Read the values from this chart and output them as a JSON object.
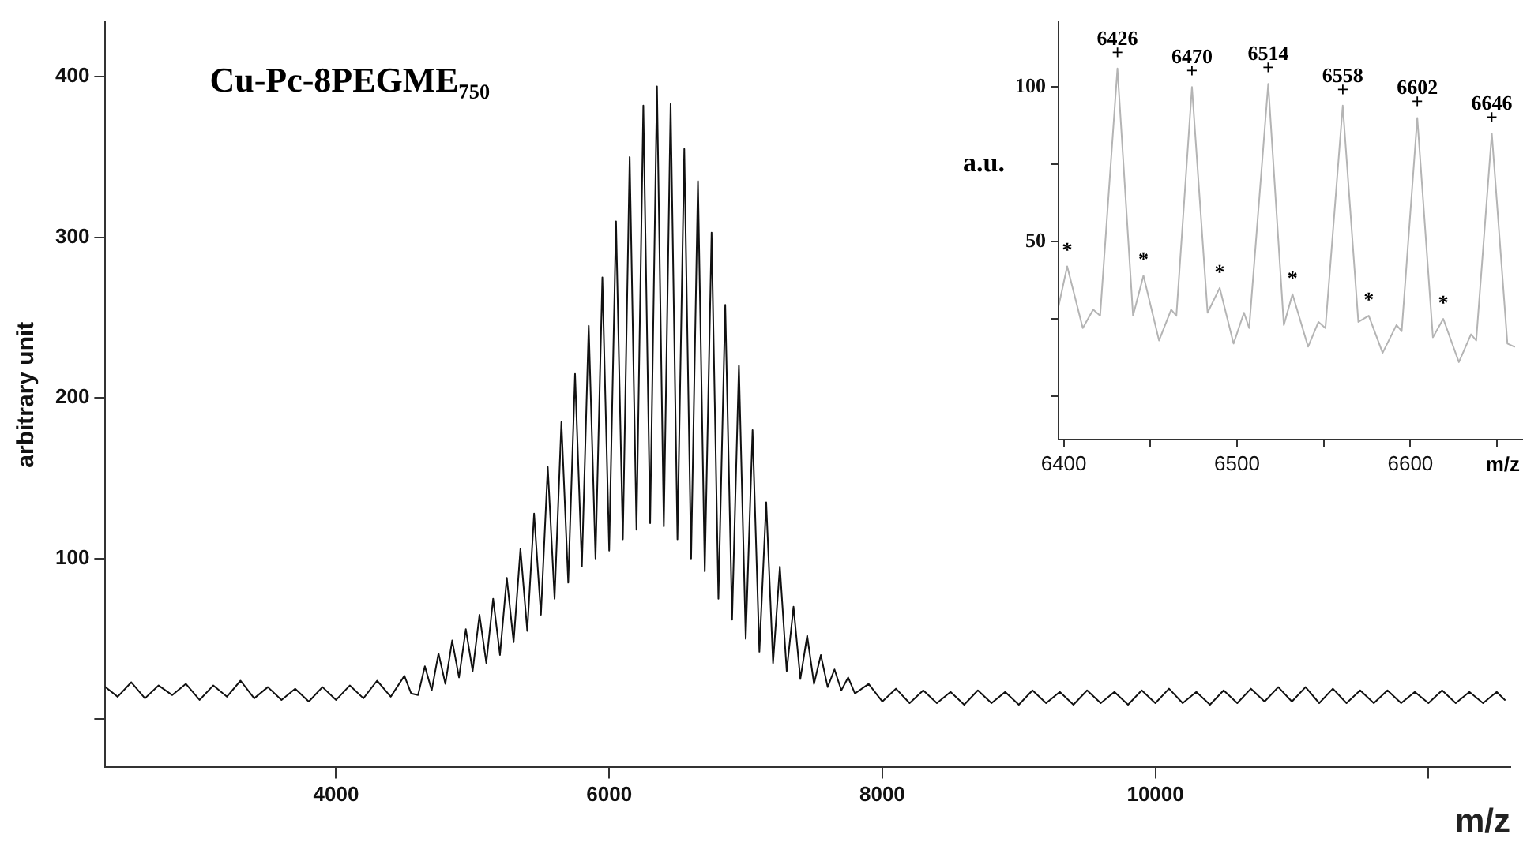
{
  "chart_data": [
    {
      "type": "line",
      "title": "Cu-Pc-8PEGME₇₅₀",
      "xlabel": "m/z",
      "ylabel": "arbitrary unit",
      "color": "#111111",
      "marker": "none",
      "x": [
        2310,
        2400,
        2500,
        2600,
        2700,
        2800,
        2900,
        3000,
        3100,
        3200,
        3300,
        3400,
        3500,
        3600,
        3700,
        3800,
        3900,
        4000,
        4100,
        4200,
        4300,
        4400,
        4500,
        4550,
        4600,
        4650,
        4700,
        4750,
        4800,
        4850,
        4900,
        4950,
        5000,
        5050,
        5100,
        5150,
        5200,
        5250,
        5300,
        5350,
        5400,
        5450,
        5500,
        5550,
        5600,
        5650,
        5700,
        5750,
        5800,
        5850,
        5900,
        5950,
        6000,
        6050,
        6100,
        6150,
        6200,
        6250,
        6300,
        6350,
        6400,
        6450,
        6500,
        6550,
        6600,
        6650,
        6700,
        6750,
        6800,
        6850,
        6900,
        6950,
        7000,
        7050,
        7100,
        7150,
        7200,
        7250,
        7300,
        7350,
        7400,
        7450,
        7500,
        7550,
        7600,
        7650,
        7700,
        7750,
        7800,
        7900,
        8000,
        8100,
        8200,
        8300,
        8400,
        8500,
        8600,
        8700,
        8800,
        8900,
        9000,
        9100,
        9200,
        9300,
        9400,
        9500,
        9600,
        9700,
        9800,
        9900,
        10000,
        10100,
        10200,
        10300,
        10400,
        10500,
        10600,
        10700,
        10800,
        10900,
        11000,
        11100,
        11200,
        11300,
        11400,
        11500,
        11600,
        11700,
        11800,
        11900,
        12000,
        12100,
        12200,
        12300,
        12400,
        12500,
        12560
      ],
      "values": [
        20,
        14,
        23,
        13,
        21,
        15,
        22,
        12,
        21,
        14,
        24,
        13,
        20,
        12,
        19,
        11,
        20,
        12,
        21,
        13,
        24,
        14,
        27,
        16,
        15,
        33,
        18,
        41,
        22,
        49,
        26,
        56,
        30,
        65,
        35,
        75,
        40,
        88,
        48,
        106,
        55,
        128,
        65,
        157,
        75,
        185,
        85,
        215,
        95,
        245,
        100,
        275,
        105,
        310,
        112,
        350,
        118,
        382,
        122,
        394,
        120,
        383,
        112,
        355,
        100,
        335,
        92,
        303,
        75,
        258,
        62,
        220,
        50,
        180,
        42,
        135,
        35,
        95,
        30,
        70,
        25,
        52,
        22,
        40,
        20,
        31,
        18,
        26,
        16,
        22,
        11,
        19,
        10,
        18,
        10,
        17,
        9,
        18,
        10,
        17,
        9,
        18,
        10,
        17,
        9,
        18,
        10,
        17,
        9,
        18,
        10,
        19,
        10,
        17,
        9,
        18,
        10,
        19,
        11,
        20,
        11,
        20,
        10,
        19,
        10,
        18,
        10,
        18,
        10,
        17,
        10,
        18,
        10,
        17,
        10,
        17,
        12
      ],
      "xlim": [
        2310,
        12600
      ],
      "ylim": [
        -30,
        434
      ],
      "xticks": [
        4000,
        6000,
        8000,
        10000,
        {
          "value": 12000,
          "label": null
        }
      ],
      "yticks": [
        {
          "value": 0,
          "label": null
        },
        100,
        200,
        300,
        400
      ]
    },
    {
      "type": "line",
      "xlabel": "m/z",
      "ylabel": "a.u.",
      "color": "#b4b4b4",
      "marker": "none",
      "x": [
        6397,
        6402,
        6411,
        6417,
        6421,
        6431,
        6440,
        6446,
        6455,
        6462,
        6465,
        6474,
        6483,
        6490,
        6498,
        6504,
        6507,
        6518,
        6527,
        6532,
        6541,
        6547,
        6551,
        6561,
        6570,
        6576,
        6584,
        6592,
        6595,
        6604,
        6613,
        6619,
        6628,
        6635,
        6638,
        6647,
        6656,
        6660
      ],
      "values": [
        29,
        42,
        22,
        28,
        26,
        106,
        26,
        39,
        18,
        28,
        26,
        100,
        27,
        35,
        17,
        27,
        22,
        101,
        23,
        33,
        16,
        24,
        22,
        94,
        24,
        26,
        14,
        23,
        21,
        90,
        19,
        25,
        11,
        20,
        18,
        85,
        17,
        16
      ],
      "xlim": [
        6397,
        6665
      ],
      "ylim": [
        -14,
        121
      ],
      "xticks": [
        6400,
        {
          "value": 6450,
          "label": null
        },
        6500,
        {
          "value": 6550,
          "label": null
        },
        6600,
        {
          "value": 6650,
          "label": null
        }
      ],
      "yticks": [
        {
          "value": 0,
          "label": null
        },
        {
          "value": 25,
          "label": null
        },
        50,
        {
          "value": 75,
          "label": null
        },
        100
      ],
      "annotations": [
        {
          "text": "*",
          "x": 6402,
          "y": 42
        },
        {
          "text": "+",
          "x": 6431,
          "y": 106
        },
        {
          "text": "6426",
          "x": 6431,
          "y": 106
        },
        {
          "text": "*",
          "x": 6446,
          "y": 39
        },
        {
          "text": "+",
          "x": 6474,
          "y": 100
        },
        {
          "text": "6470",
          "x": 6474,
          "y": 100
        },
        {
          "text": "*",
          "x": 6490,
          "y": 35
        },
        {
          "text": "+",
          "x": 6518,
          "y": 101
        },
        {
          "text": "6514",
          "x": 6518,
          "y": 101
        },
        {
          "text": "*",
          "x": 6532,
          "y": 33
        },
        {
          "text": "+",
          "x": 6561,
          "y": 94
        },
        {
          "text": "6558",
          "x": 6561,
          "y": 94
        },
        {
          "text": "*",
          "x": 6576,
          "y": 26
        },
        {
          "text": "+",
          "x": 6604,
          "y": 90
        },
        {
          "text": "6602",
          "x": 6604,
          "y": 90
        },
        {
          "text": "*",
          "x": 6619,
          "y": 25
        },
        {
          "text": "+",
          "x": 6647,
          "y": 85
        },
        {
          "text": "6646",
          "x": 6647,
          "y": 85
        }
      ]
    }
  ]
}
